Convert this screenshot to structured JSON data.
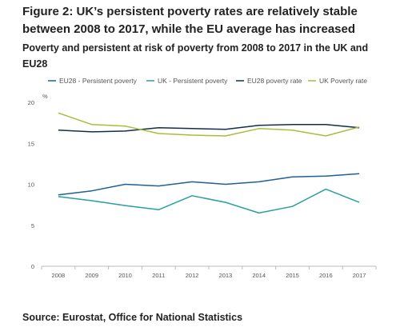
{
  "figure": {
    "title": "Figure 2: UK’s persistent poverty rates are relatively stable between 2008 to 2017, while the EU average has increased",
    "subtitle": "Poverty and persistent at risk of poverty from 2008 to 2017 in the UK and EU28",
    "source": "Source: Eurostat, Office for National Statistics"
  },
  "colors": {
    "eu28_persistent": "#206095",
    "uk_persistent": "#27a0a0",
    "eu28_poverty": "#0f2f4f",
    "uk_poverty": "#a8bd3a",
    "axis": "#bbbbbb",
    "grid": "#dddddd"
  },
  "chart_data": {
    "type": "line",
    "title": "",
    "xlabel": "",
    "ylabel": "%",
    "x": [
      "2008",
      "2009",
      "2010",
      "2011",
      "2012",
      "2013",
      "2014",
      "2015",
      "2016",
      "2017"
    ],
    "ylim": [
      0,
      20
    ],
    "yticks": [
      0,
      5,
      10,
      15,
      20
    ],
    "grid": false,
    "legend_position": "top",
    "series": [
      {
        "name": "EU28 - Persistent poverty",
        "color_key": "eu28_persistent",
        "values": [
          8.7,
          9.2,
          10.0,
          9.8,
          10.3,
          10.0,
          10.3,
          10.9,
          11.0,
          11.3
        ]
      },
      {
        "name": "UK - Persistent poverty",
        "color_key": "uk_persistent",
        "values": [
          8.5,
          8.0,
          7.4,
          6.9,
          8.6,
          7.8,
          6.5,
          7.3,
          9.4,
          7.8
        ]
      },
      {
        "name": "EU28 poverty rate",
        "color_key": "eu28_poverty",
        "values": [
          16.6,
          16.4,
          16.5,
          16.9,
          16.8,
          16.7,
          17.2,
          17.3,
          17.3,
          16.9
        ]
      },
      {
        "name": "UK Poverty rate",
        "color_key": "uk_poverty",
        "values": [
          18.7,
          17.3,
          17.1,
          16.2,
          16.0,
          15.9,
          16.8,
          16.6,
          15.9,
          17.0
        ]
      }
    ]
  }
}
